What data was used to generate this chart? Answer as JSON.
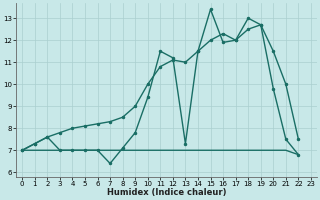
{
  "xlabel": "Humidex (Indice chaleur)",
  "bg_color": "#c8e8e8",
  "grid_color": "#aacfcf",
  "line_color": "#1a6e65",
  "xlim": [
    -0.5,
    23.5
  ],
  "ylim": [
    5.8,
    13.7
  ],
  "yticks": [
    6,
    7,
    8,
    9,
    10,
    11,
    12,
    13
  ],
  "xticks": [
    0,
    1,
    2,
    3,
    4,
    5,
    6,
    7,
    8,
    9,
    10,
    11,
    12,
    13,
    14,
    15,
    16,
    17,
    18,
    19,
    20,
    21,
    22,
    23
  ],
  "line_min": {
    "x": [
      0,
      1,
      2,
      3,
      4,
      5,
      6,
      7,
      8,
      9,
      10,
      11,
      12,
      13,
      14,
      15,
      16,
      17,
      18,
      19,
      20,
      21,
      22
    ],
    "y": [
      7.0,
      7.0,
      7.0,
      7.0,
      7.0,
      7.0,
      7.0,
      7.0,
      7.0,
      7.0,
      7.0,
      7.0,
      7.0,
      7.0,
      7.0,
      7.0,
      7.0,
      7.0,
      7.0,
      7.0,
      7.0,
      7.0,
      6.8
    ]
  },
  "line_mean": {
    "x": [
      0,
      1,
      2,
      3,
      4,
      5,
      6,
      7,
      8,
      9,
      10,
      11,
      12,
      13,
      14,
      15,
      16,
      17,
      18,
      19,
      20,
      21,
      22
    ],
    "y": [
      7.0,
      7.3,
      7.6,
      7.8,
      8.0,
      8.1,
      8.2,
      8.3,
      8.5,
      9.0,
      10.0,
      10.8,
      11.1,
      11.0,
      11.5,
      12.0,
      12.3,
      12.0,
      12.5,
      12.7,
      11.5,
      10.0,
      7.5
    ]
  },
  "line_max": {
    "x": [
      0,
      1,
      2,
      3,
      4,
      5,
      6,
      7,
      8,
      9,
      10,
      11,
      12,
      13,
      14,
      15,
      16,
      17,
      18,
      19,
      20,
      21,
      22
    ],
    "y": [
      7.0,
      7.3,
      7.6,
      7.0,
      7.0,
      7.0,
      7.0,
      6.4,
      7.1,
      7.8,
      9.4,
      11.5,
      11.2,
      7.3,
      11.5,
      13.4,
      11.9,
      12.0,
      13.0,
      12.7,
      9.8,
      7.5,
      6.8
    ]
  }
}
